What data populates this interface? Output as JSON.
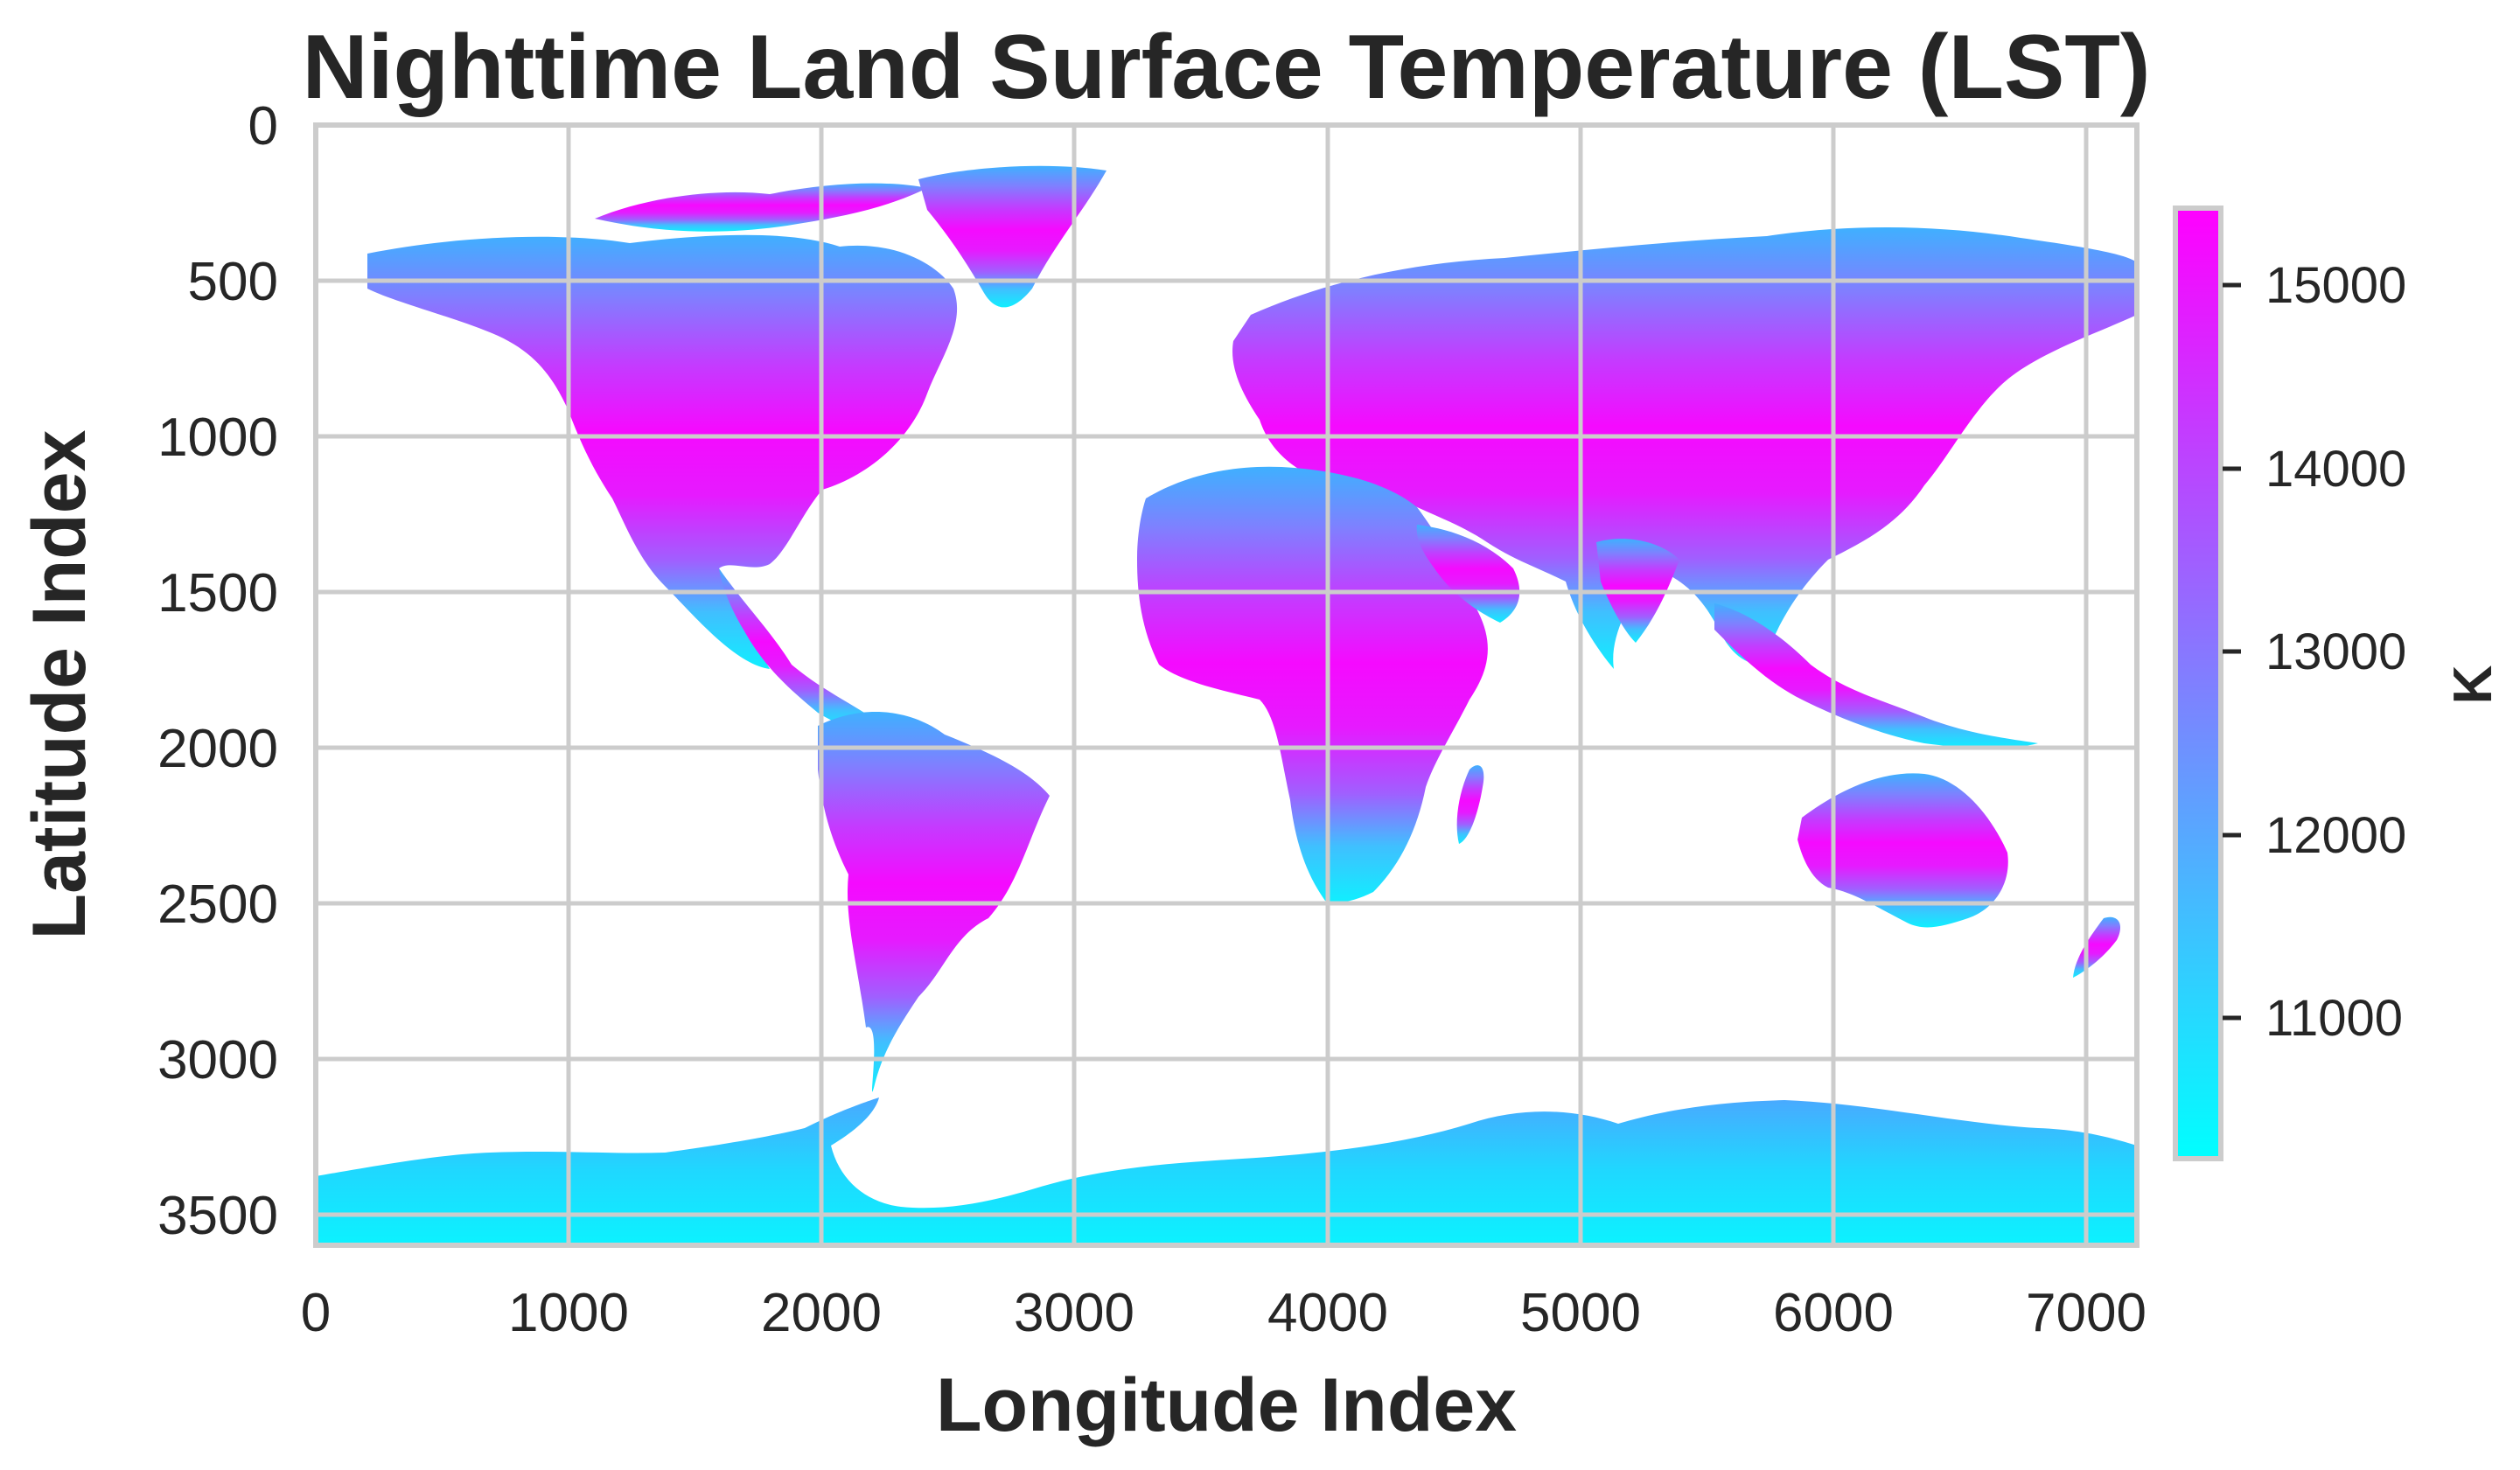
{
  "title": "Nighttime Land Surface Temperature (LST)",
  "x_axis": {
    "label": "Longitude Index",
    "ticks": [
      "0",
      "1000",
      "2000",
      "3000",
      "4000",
      "5000",
      "6000",
      "7000"
    ]
  },
  "y_axis": {
    "label": "Latitude Index",
    "ticks": [
      "0",
      "500",
      "1000",
      "1500",
      "2000",
      "2500",
      "3000",
      "3500"
    ]
  },
  "colorbar": {
    "label": "K",
    "ticks": [
      "11000",
      "12000",
      "13000",
      "14000",
      "15000"
    ],
    "colormap": "cool",
    "colors": [
      "#00ffff",
      "#ff00ff"
    ]
  },
  "chart_data": {
    "type": "heatmap",
    "title": "Nighttime Land Surface Temperature (LST)",
    "xlabel": "Longitude Index",
    "ylabel": "Latitude Index",
    "xlim": [
      0,
      7200
    ],
    "ylim": [
      3600,
      0
    ],
    "x_ticks": [
      0,
      1000,
      2000,
      3000,
      4000,
      5000,
      6000,
      7000
    ],
    "y_ticks": [
      0,
      500,
      1000,
      1500,
      2000,
      2500,
      3000,
      3500
    ],
    "colorbar_range": [
      10150,
      15350
    ],
    "colorbar_ticks": [
      11000,
      12000,
      13000,
      14000,
      15000
    ],
    "colorbar_label": "K",
    "colormap": "cool",
    "grid": true,
    "y_axis_inverted": true,
    "no_data_color": "#ffffff"
  }
}
